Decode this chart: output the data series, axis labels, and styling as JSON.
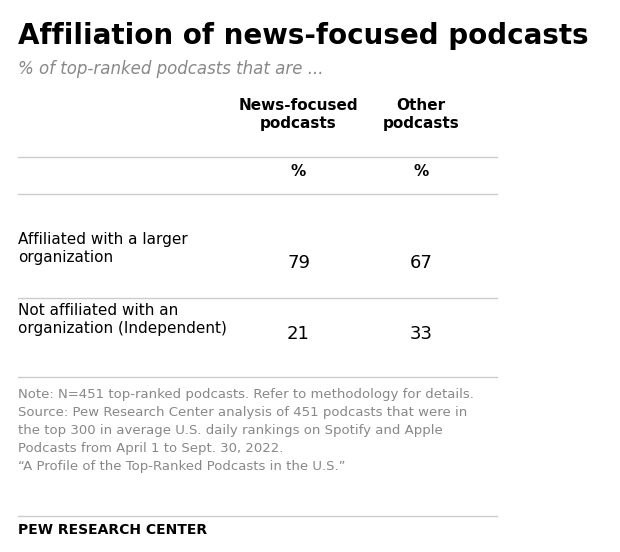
{
  "title": "Affiliation of news-focused podcasts",
  "subtitle": "% of top-ranked podcasts that are ...",
  "col_headers": [
    "News-focused\npodcasts",
    "Other\npodcasts"
  ],
  "col_subheaders": [
    "%",
    "%"
  ],
  "row_labels": [
    "Affiliated with a larger\norganization",
    "Not affiliated with an\norganization (Independent)"
  ],
  "values": [
    [
      79,
      67
    ],
    [
      21,
      33
    ]
  ],
  "note_text": "Note: N=451 top-ranked podcasts. Refer to methodology for details.\nSource: Pew Research Center analysis of 451 podcasts that were in\nthe top 300 in average U.S. daily rankings on Spotify and Apple\nPodcasts from April 1 to Sept. 30, 2022.\n“A Profile of the Top-Ranked Podcasts in the U.S.”",
  "footer": "PEW RESEARCH CENTER",
  "bg_color": "#ffffff",
  "title_color": "#000000",
  "subtitle_color": "#888888",
  "header_color": "#000000",
  "row_label_color": "#000000",
  "value_color": "#000000",
  "note_color": "#888888",
  "footer_color": "#000000",
  "line_color": "#cccccc",
  "title_fontsize": 20,
  "subtitle_fontsize": 12,
  "header_fontsize": 11,
  "subheader_fontsize": 11,
  "value_fontsize": 13,
  "row_label_fontsize": 11,
  "note_fontsize": 9.5,
  "footer_fontsize": 10
}
